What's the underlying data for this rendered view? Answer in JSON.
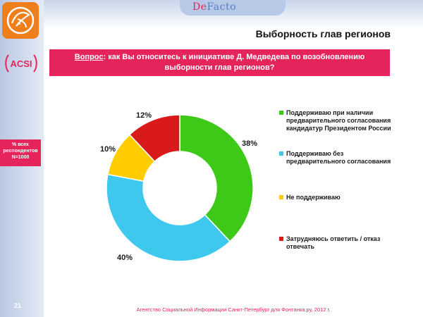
{
  "brand": {
    "de": "De",
    "facto": "Facto",
    "agency_logo_text": "ACSI"
  },
  "title": "Выборность глав регионов",
  "question": {
    "label": "Вопрос",
    "text": ": как Вы относитесь к инициативе Д. Медведева по возобновлению выборности глав регионов?"
  },
  "respondents": {
    "line1": "% всех",
    "line2": "респондентов",
    "line3": "N=1000"
  },
  "page_number": "21",
  "footer": "Агентство Социальной Информации Санкт-Петербург для Фонтанка.ру, 2012 г.",
  "colors": {
    "accent": "#e4245a",
    "logo_orange": "#ef7f1a"
  },
  "chart_data": {
    "type": "pie",
    "donut": true,
    "slices": [
      {
        "label": "Поддерживаю при наличии предварительного согласования кандидатур Президентом России",
        "value": 38,
        "value_label": "38%",
        "color": "#3ec919"
      },
      {
        "label": "Поддерживаю без предварительного согласования",
        "value": 40,
        "value_label": "40%",
        "color": "#3fc8ee"
      },
      {
        "label": "Не поддерживаю",
        "value": 10,
        "value_label": "10%",
        "color": "#ffcc00"
      },
      {
        "label": "Затрудняюсь ответить / отказ отвечать",
        "value": 12,
        "value_label": "12%",
        "color": "#d81a1a"
      }
    ],
    "legend_position": "right"
  }
}
